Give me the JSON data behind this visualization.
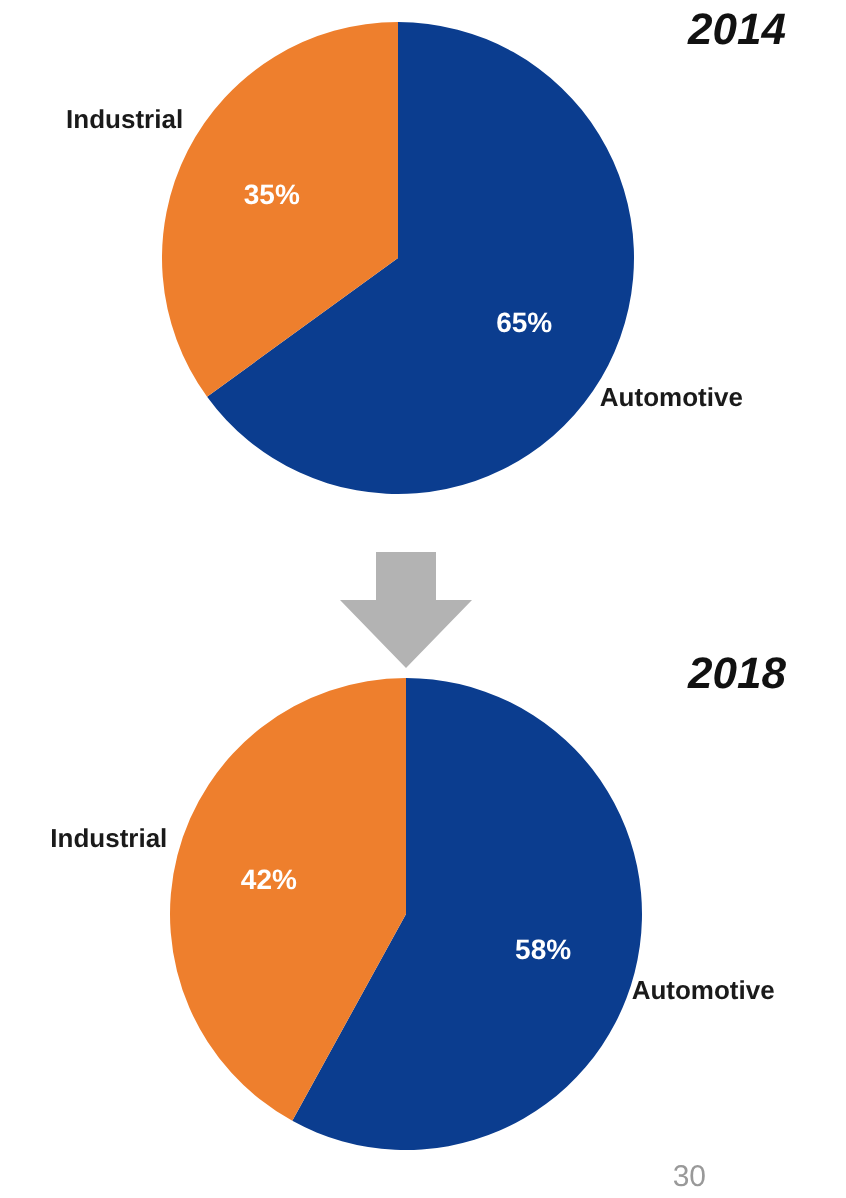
{
  "chart_data": [
    {
      "type": "pie",
      "title": "2014",
      "categories": [
        "Automotive",
        "Industrial"
      ],
      "values": [
        65,
        35
      ],
      "colors": [
        "#0b3d8f",
        "#ee7f2d"
      ],
      "value_labels": [
        "65%",
        "35%"
      ],
      "legend": false
    },
    {
      "type": "pie",
      "title": "2018",
      "categories": [
        "Automotive",
        "Industrial"
      ],
      "values": [
        58,
        42
      ],
      "colors": [
        "#0b3d8f",
        "#ee7f2d"
      ],
      "value_labels": [
        "58%",
        "42%"
      ],
      "legend": false,
      "annotations": [
        "30"
      ]
    }
  ]
}
